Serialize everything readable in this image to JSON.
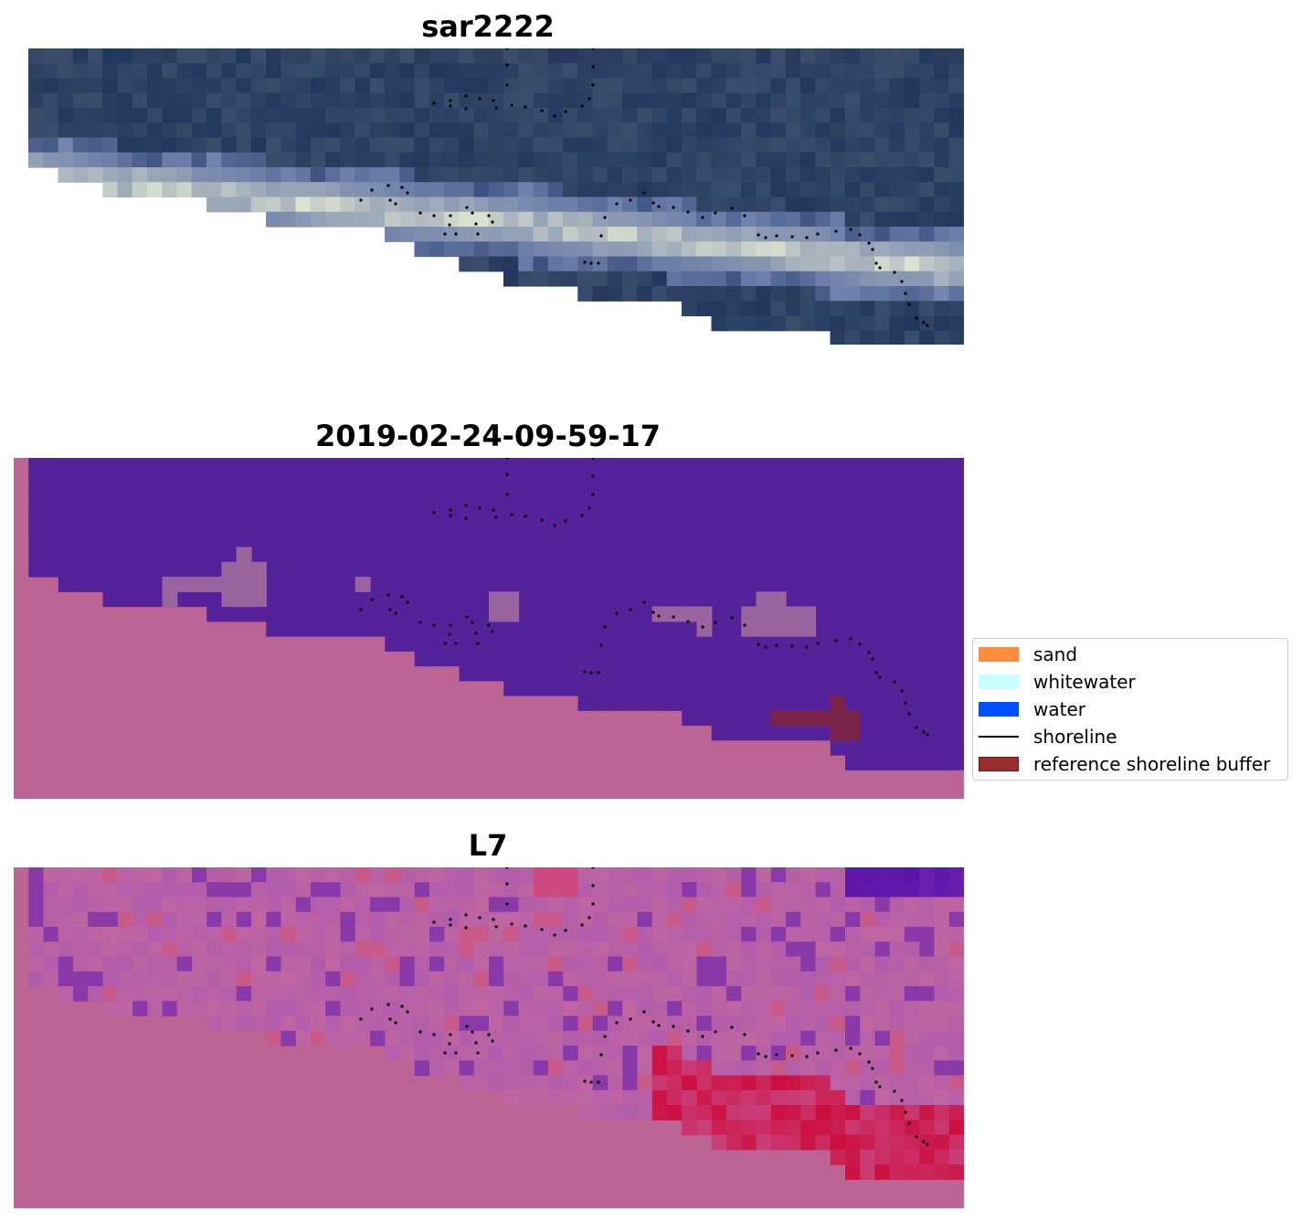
{
  "panels": [
    {
      "title": "sar2222"
    },
    {
      "title": "2019-02-24-09-59-17"
    },
    {
      "title": "L7"
    }
  ],
  "legend": {
    "items": [
      {
        "label": "sand",
        "color": "#ff8c3a",
        "kind": "patch"
      },
      {
        "label": "whitewater",
        "color": "#c8ffff",
        "kind": "patch"
      },
      {
        "label": "water",
        "color": "#0050ff",
        "kind": "patch"
      },
      {
        "label": "shoreline",
        "color": "#000000",
        "kind": "line"
      },
      {
        "label": "reference shoreline buffer",
        "color": "#9a2f2f",
        "kind": "patch"
      }
    ]
  },
  "colors": {
    "background": "#bc6494",
    "classified_water": "#55229a",
    "classified_mixed": "#9a659f",
    "buffer_overlay": "#7a2548",
    "sar_dark": "#233a60",
    "l7_dominant": "#bd5ea3"
  }
}
